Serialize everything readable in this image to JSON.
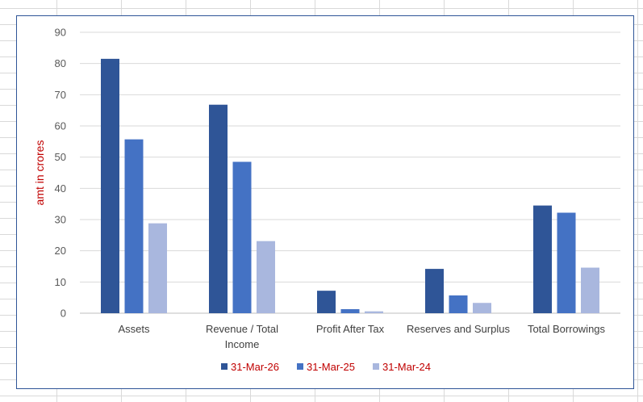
{
  "chart_data": {
    "type": "bar",
    "title": "",
    "xlabel": "",
    "ylabel": "amt in crores",
    "ylim": [
      0,
      90
    ],
    "yticks": [
      0,
      10,
      20,
      30,
      40,
      50,
      60,
      70,
      80,
      90
    ],
    "grid": true,
    "legend_position": "bottom",
    "categories": [
      [
        "Assets"
      ],
      [
        "Revenue / Total",
        "Income"
      ],
      [
        "Profit After Tax"
      ],
      [
        "Reserves and Surplus"
      ],
      [
        "Total Borrowings"
      ]
    ],
    "series": [
      {
        "name": "31-Mar-26",
        "color": "#2f5597",
        "values": [
          81.5,
          66.8,
          7.2,
          14.2,
          34.5
        ]
      },
      {
        "name": "31-Mar-25",
        "color": "#4472c4",
        "values": [
          55.7,
          48.5,
          1.3,
          5.7,
          32.2
        ]
      },
      {
        "name": "31-Mar-24",
        "color": "#a9b7de",
        "values": [
          28.8,
          23.1,
          0.6,
          3.3,
          14.6
        ]
      }
    ],
    "legend_text_color": "#c00000"
  }
}
